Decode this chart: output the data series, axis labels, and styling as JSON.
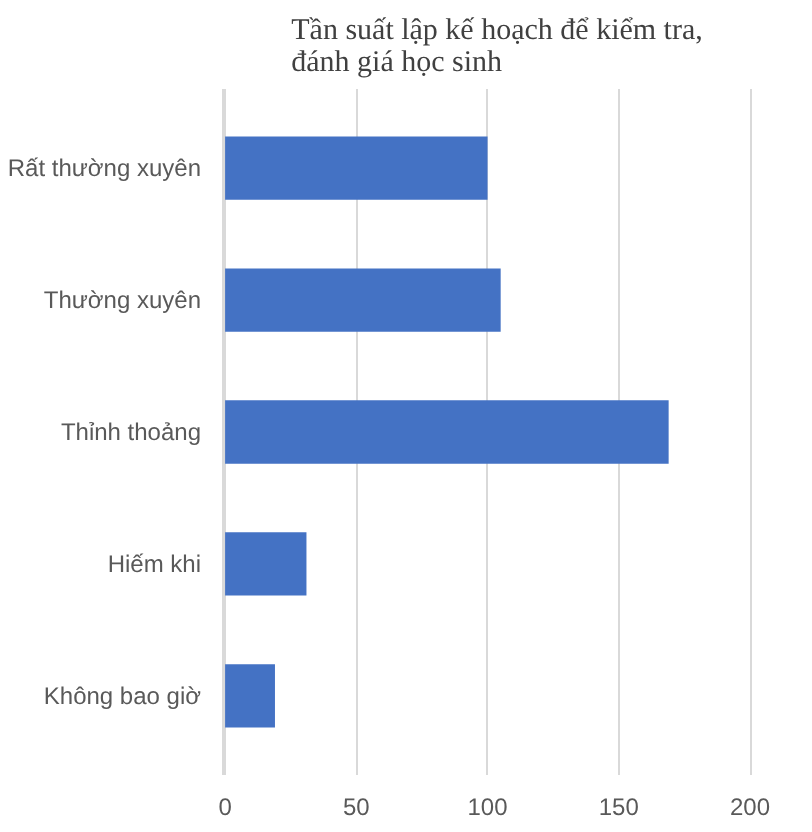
{
  "chart_data": {
    "type": "bar",
    "orientation": "horizontal",
    "title": "Tần suất lập kế hoạch để kiểm tra,\nđánh giá học sinh",
    "categories": [
      "Rất thường xuyên",
      "Thường xuyên",
      "Thỉnh thoảng",
      "Hiếm khi",
      "Không bao giờ"
    ],
    "values": [
      100,
      105,
      169,
      31,
      19
    ],
    "color": "#4472c4",
    "xlim": [
      0,
      200
    ],
    "xticks": [
      0,
      50,
      100,
      150,
      200
    ],
    "grid": "x"
  }
}
